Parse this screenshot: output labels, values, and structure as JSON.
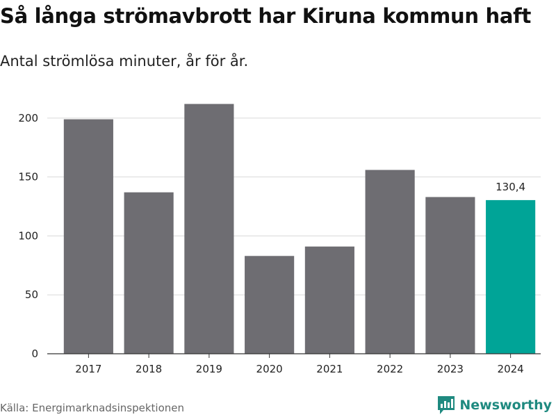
{
  "title": "Så långa strömavbrott har Kiruna kommun haft",
  "subtitle": "Antal strömlösa minuter, år för år.",
  "source": "Källa: Energimarknadsinspektionen",
  "brand": {
    "name": "Newsworthy",
    "icon": "newsworthy-logo-icon",
    "color": "#1f8a80"
  },
  "chart_data": {
    "type": "bar",
    "categories": [
      "2017",
      "2018",
      "2019",
      "2020",
      "2021",
      "2022",
      "2023",
      "2024"
    ],
    "values": [
      199,
      137,
      212,
      83,
      91,
      156,
      133,
      130.4
    ],
    "ylim": [
      0,
      220
    ],
    "yticks": [
      0,
      50,
      100,
      150,
      200
    ],
    "grid": true,
    "bar_color": "#6e6d72",
    "highlight_color": "#00a497",
    "highlight_index": 7,
    "data_labels": [
      {
        "index": 7,
        "text": "130,4"
      }
    ]
  }
}
